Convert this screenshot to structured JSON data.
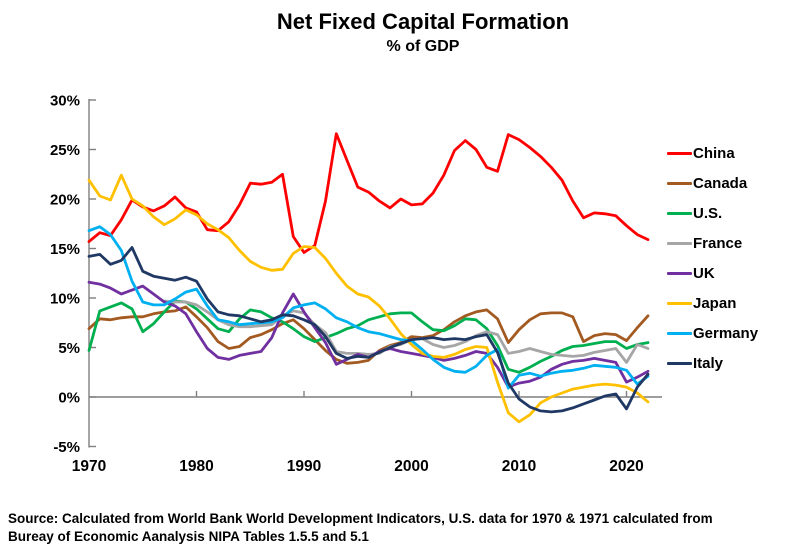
{
  "title": "Net Fixed Capital Formation",
  "subtitle": "% of GDP",
  "source": {
    "line1": "Source:  Calculated from World Bank World Development Indicators, U.S. data for 1970 & 1971 calculated from",
    "line2": "Bureay of Economic Aanalysis NIPA Tables 1.5.5 and 5.1"
  },
  "chart_data": {
    "type": "line",
    "title": "Net Fixed Capital Formation",
    "subtitle": "% of GDP",
    "xlim": [
      1970,
      2023.5
    ],
    "ylim": [
      -5,
      30
    ],
    "grid": "zero-line-only",
    "legend_position": "right",
    "axis_color": "#7F7F7F",
    "y_ticks": [
      30,
      25,
      20,
      15,
      10,
      5,
      0,
      -5
    ],
    "y_tick_labels": [
      "30%",
      "25%",
      "20%",
      "15%",
      "10%",
      "5%",
      "0%",
      "-5%"
    ],
    "x_tick_years": [
      1970,
      1980,
      1990,
      2000,
      2010,
      2020
    ],
    "x_tick_labels": [
      "1970",
      "1980",
      "1990",
      "2000",
      "2010",
      "2020"
    ],
    "series": [
      {
        "name": "China",
        "color": "#FF0000",
        "start_year": 1970,
        "values": [
          15.7,
          16.6,
          16.3,
          17.9,
          19.9,
          19.2,
          18.8,
          19.3,
          20.2,
          19.1,
          18.7,
          16.9,
          16.8,
          17.7,
          19.4,
          21.6,
          21.5,
          21.7,
          22.5,
          16.2,
          14.6,
          15.3,
          19.8,
          26.6,
          23.9,
          21.2,
          20.7,
          19.8,
          19.1,
          20.0,
          19.4,
          19.5,
          20.6,
          22.4,
          24.9,
          25.9,
          25.0,
          23.2,
          22.8,
          26.5,
          26.0,
          25.2,
          24.3,
          23.2,
          21.9,
          19.8,
          18.1,
          18.6,
          18.5,
          18.3,
          17.3,
          16.4,
          15.9
        ]
      },
      {
        "name": "Canada",
        "color": "#A35A21",
        "start_year": 1970,
        "values": [
          6.9,
          7.9,
          7.8,
          8.0,
          8.1,
          8.1,
          8.4,
          8.6,
          8.7,
          9.1,
          8.1,
          7.0,
          5.6,
          4.9,
          5.1,
          6.0,
          6.3,
          6.8,
          7.4,
          7.8,
          6.9,
          5.8,
          4.7,
          3.8,
          3.4,
          3.5,
          3.7,
          4.7,
          5.2,
          5.5,
          6.1,
          6.0,
          6.2,
          6.8,
          7.6,
          8.2,
          8.6,
          8.8,
          7.9,
          5.5,
          6.8,
          7.8,
          8.4,
          8.5,
          8.5,
          8.1,
          5.6,
          6.2,
          6.4,
          6.3,
          5.7,
          7.0,
          8.2
        ]
      },
      {
        "name": "U.S.",
        "color": "#00B050",
        "start_year": 1970,
        "values": [
          4.7,
          8.7,
          9.1,
          9.5,
          8.9,
          6.6,
          7.4,
          8.6,
          9.7,
          9.6,
          8.9,
          7.9,
          6.9,
          6.6,
          7.9,
          8.8,
          8.6,
          8.0,
          7.6,
          6.9,
          6.1,
          5.6,
          6.0,
          6.4,
          6.9,
          7.2,
          7.8,
          8.1,
          8.4,
          8.5,
          8.5,
          7.6,
          6.8,
          6.7,
          7.2,
          7.9,
          7.8,
          6.9,
          5.2,
          2.8,
          2.5,
          3.0,
          3.6,
          4.1,
          4.7,
          5.1,
          5.2,
          5.4,
          5.6,
          5.6,
          4.9,
          5.3,
          5.5
        ]
      },
      {
        "name": "France",
        "color": "#A6A6A6",
        "start_year": 1977,
        "values": [
          9.7,
          9.6,
          9.6,
          9.3,
          8.6,
          7.8,
          7.3,
          7.1,
          7.1,
          7.2,
          7.3,
          8.2,
          8.7,
          8.5,
          7.3,
          6.5,
          4.6,
          4.4,
          4.4,
          4.3,
          4.4,
          5.1,
          5.3,
          5.8,
          5.9,
          5.3,
          5.0,
          5.2,
          5.6,
          6.2,
          6.6,
          6.3,
          4.4,
          4.6,
          4.9,
          4.6,
          4.3,
          4.2,
          4.1,
          4.2,
          4.5,
          4.7,
          4.9,
          3.5,
          5.3,
          4.9
        ]
      },
      {
        "name": "UK",
        "color": "#7030A0",
        "start_year": 1970,
        "values": [
          11.6,
          11.4,
          11.0,
          10.4,
          10.8,
          11.2,
          10.4,
          9.6,
          9.2,
          8.4,
          6.6,
          4.9,
          4.0,
          3.8,
          4.2,
          4.4,
          4.6,
          6.0,
          8.5,
          10.4,
          8.6,
          7.0,
          5.5,
          3.3,
          3.8,
          4.3,
          4.0,
          4.6,
          4.9,
          4.6,
          4.4,
          4.2,
          4.0,
          3.7,
          3.9,
          4.2,
          4.6,
          4.4,
          3.0,
          1.0,
          1.4,
          1.6,
          2.0,
          2.8,
          3.3,
          3.6,
          3.7,
          3.9,
          3.7,
          3.5,
          1.5,
          2.0,
          2.6
        ]
      },
      {
        "name": "Japan",
        "color": "#FFC000",
        "start_year": 1970,
        "values": [
          21.9,
          20.3,
          19.9,
          22.4,
          20.0,
          19.3,
          18.2,
          17.4,
          18.0,
          18.9,
          18.4,
          17.5,
          16.9,
          16.1,
          14.8,
          13.7,
          13.1,
          12.8,
          12.9,
          14.5,
          15.2,
          15.1,
          14.0,
          12.5,
          11.2,
          10.4,
          10.1,
          9.2,
          7.9,
          6.4,
          5.3,
          4.4,
          4.1,
          4.0,
          4.3,
          4.8,
          5.1,
          5.0,
          1.5,
          -1.6,
          -2.5,
          -1.8,
          -0.6,
          0.0,
          0.4,
          0.8,
          1.0,
          1.2,
          1.3,
          1.2,
          1.0,
          0.4,
          -0.5
        ]
      },
      {
        "name": "Germany",
        "color": "#00B0F0",
        "start_year": 1970,
        "values": [
          16.8,
          17.2,
          16.4,
          14.8,
          11.7,
          9.6,
          9.3,
          9.3,
          9.9,
          10.6,
          10.9,
          9.2,
          7.8,
          7.6,
          7.3,
          7.4,
          7.5,
          7.6,
          8.0,
          9.0,
          9.3,
          9.5,
          8.9,
          8.0,
          7.6,
          7.0,
          6.6,
          6.4,
          6.1,
          5.8,
          5.7,
          4.8,
          3.8,
          3.0,
          2.6,
          2.5,
          3.1,
          4.2,
          4.8,
          0.9,
          2.2,
          2.4,
          2.1,
          2.4,
          2.6,
          2.7,
          2.9,
          3.2,
          3.1,
          3.0,
          2.7,
          1.3,
          2.1
        ]
      },
      {
        "name": "Italy",
        "color": "#203864",
        "start_year": 1970,
        "values": [
          14.2,
          14.4,
          13.4,
          13.8,
          15.1,
          12.7,
          12.2,
          12.0,
          11.8,
          12.1,
          11.7,
          9.9,
          8.6,
          8.3,
          8.2,
          7.9,
          7.6,
          7.8,
          8.3,
          8.2,
          7.8,
          7.3,
          6.1,
          4.4,
          3.9,
          4.1,
          4.0,
          4.5,
          5.0,
          5.4,
          5.8,
          5.9,
          6.0,
          5.8,
          5.9,
          5.8,
          6.1,
          6.3,
          4.5,
          1.4,
          -0.2,
          -1.0,
          -1.4,
          -1.5,
          -1.4,
          -1.1,
          -0.7,
          -0.3,
          0.1,
          0.3,
          -1.2,
          1.0,
          2.3
        ]
      }
    ]
  }
}
